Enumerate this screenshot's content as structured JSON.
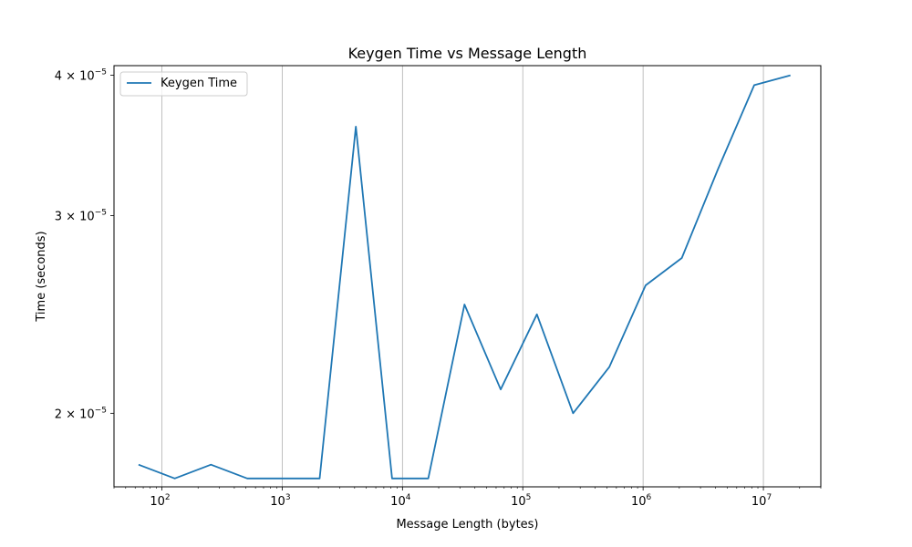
{
  "chart_data": {
    "type": "line",
    "title": "Keygen Time vs Message Length",
    "xlabel": "Message Length (bytes)",
    "ylabel": "Time (seconds)",
    "xscale": "log",
    "yscale": "log",
    "xlim": [
      40,
      30000000
    ],
    "ylim": [
      1.72e-05,
      4.08e-05
    ],
    "grid": "x-major",
    "legend_location": "top-left",
    "line_color": "#1f77b4",
    "x_ticks": [
      {
        "value": 100,
        "base": "10",
        "exp": "2"
      },
      {
        "value": 1000,
        "base": "10",
        "exp": "3"
      },
      {
        "value": 10000,
        "base": "10",
        "exp": "4"
      },
      {
        "value": 100000,
        "base": "10",
        "exp": "5"
      },
      {
        "value": 1000000,
        "base": "10",
        "exp": "6"
      },
      {
        "value": 10000000,
        "base": "10",
        "exp": "7"
      }
    ],
    "y_ticks": [
      {
        "value": 2e-05,
        "mant": "2 × 10",
        "exp": "−5"
      },
      {
        "value": 3e-05,
        "mant": "3 × 10",
        "exp": "−5"
      },
      {
        "value": 4e-05,
        "mant": "4 × 10",
        "exp": "−5"
      }
    ],
    "series": [
      {
        "name": "Keygen Time",
        "x": [
          64,
          128,
          256,
          512,
          1024,
          2048,
          4096,
          8192,
          16384,
          32768,
          65536,
          131072,
          262144,
          524288,
          1048576,
          2097152,
          4194304,
          8388608,
          16777216
        ],
        "y": [
          1.8e-05,
          1.75e-05,
          1.8e-05,
          1.75e-05,
          1.75e-05,
          1.75e-05,
          3.6e-05,
          1.75e-05,
          1.75e-05,
          2.5e-05,
          2.1e-05,
          2.45e-05,
          2e-05,
          2.2e-05,
          2.6e-05,
          2.75e-05,
          3.3e-05,
          3.92e-05,
          4e-05
        ]
      }
    ]
  }
}
